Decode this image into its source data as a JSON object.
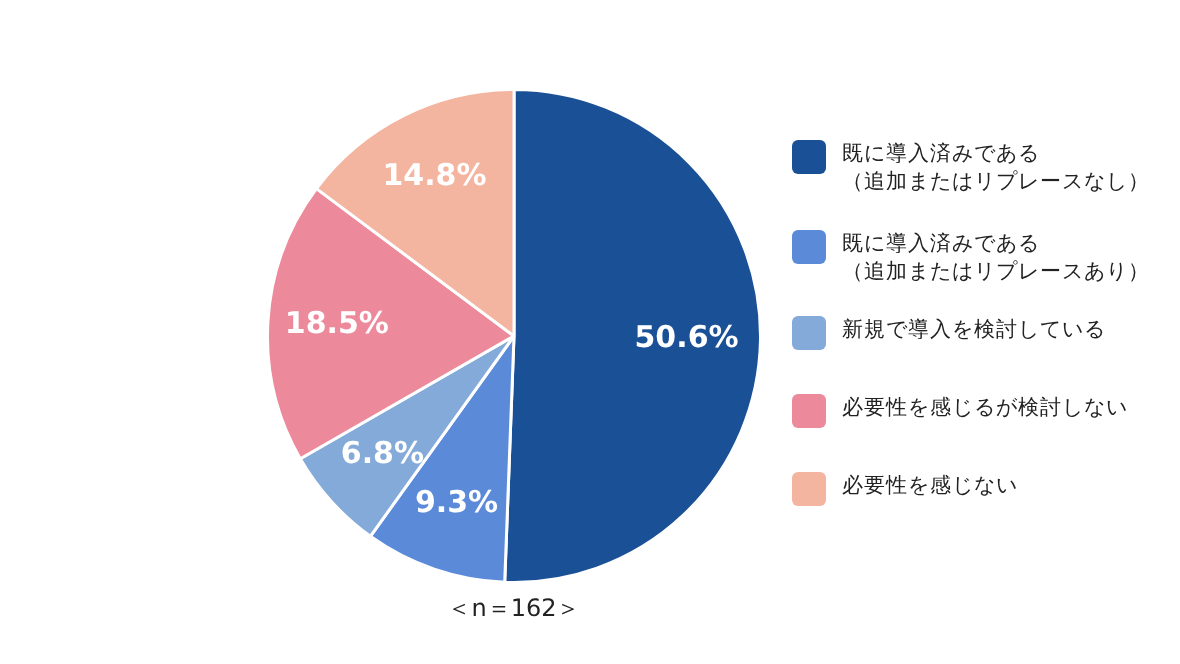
{
  "chart_data": {
    "type": "pie",
    "categories": [
      "既に導入済みである（追加またはリプレースなし）",
      "既に導入済みである（追加またはリプレースあり）",
      "新規で導入を検討している",
      "必要性を感じるが検討しない",
      "必要性を感じない"
    ],
    "values": [
      50.6,
      9.3,
      6.8,
      18.5,
      14.8
    ],
    "value_labels": [
      "50.6%",
      "9.3%",
      "6.8%",
      "18.5%",
      "14.8%"
    ],
    "colors": [
      "#1a5096",
      "#5b8bd8",
      "#84aad9",
      "#ec8a9c",
      "#f4b5a0"
    ],
    "legend": "right",
    "annotations": [
      "＜n＝162＞"
    ]
  }
}
